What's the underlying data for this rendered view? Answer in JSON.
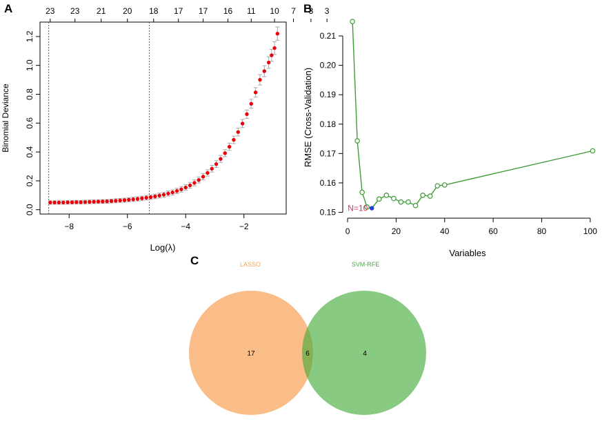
{
  "chart_data": [
    {
      "panel": "A",
      "type": "scatter",
      "title": "",
      "xlabel": "Log(λ)",
      "ylabel": "Binomial Deviance",
      "xlim": [
        -9.0,
        -0.55
      ],
      "ylim": [
        -0.03,
        1.3
      ],
      "xticks": [
        -8,
        -6,
        -4,
        -2
      ],
      "yticks": [
        0.0,
        0.2,
        0.4,
        0.6,
        0.8,
        1.0,
        1.2
      ],
      "top_axis_labels": [
        "23",
        "23",
        "21",
        "20",
        "18",
        "17",
        "17",
        "16",
        "11",
        "10",
        "7",
        "3",
        "3"
      ],
      "top_axis_positions": [
        -8.65,
        -7.8,
        -6.9,
        -6.0,
        -5.1,
        -4.25,
        -3.4,
        -2.55,
        -1.75,
        -0.95,
        -0.3,
        0.3,
        0.85
      ],
      "vlines": [
        -8.7,
        -5.25
      ],
      "series": [
        {
          "name": "CV deviance",
          "x": [
            -8.65,
            -8.5,
            -8.35,
            -8.2,
            -8.05,
            -7.9,
            -7.75,
            -7.6,
            -7.45,
            -7.3,
            -7.15,
            -7.0,
            -6.85,
            -6.7,
            -6.55,
            -6.4,
            -6.25,
            -6.1,
            -5.95,
            -5.8,
            -5.65,
            -5.5,
            -5.35,
            -5.2,
            -5.05,
            -4.9,
            -4.75,
            -4.6,
            -4.45,
            -4.3,
            -4.15,
            -4.0,
            -3.85,
            -3.7,
            -3.55,
            -3.4,
            -3.25,
            -3.1,
            -2.95,
            -2.8,
            -2.65,
            -2.5,
            -2.35,
            -2.2,
            -2.05,
            -1.9,
            -1.75,
            -1.6,
            -1.45,
            -1.3,
            -1.15,
            -1.05,
            -0.95,
            -0.85
          ],
          "y": [
            0.05,
            0.05,
            0.05,
            0.05,
            0.051,
            0.051,
            0.052,
            0.052,
            0.053,
            0.054,
            0.055,
            0.056,
            0.057,
            0.058,
            0.06,
            0.062,
            0.064,
            0.066,
            0.069,
            0.072,
            0.075,
            0.079,
            0.083,
            0.087,
            0.092,
            0.098,
            0.104,
            0.112,
            0.12,
            0.13,
            0.141,
            0.154,
            0.169,
            0.186,
            0.206,
            0.229,
            0.255,
            0.284,
            0.316,
            0.352,
            0.392,
            0.436,
            0.484,
            0.538,
            0.597,
            0.662,
            0.734,
            0.813,
            0.9,
            0.96,
            1.02,
            1.07,
            1.12,
            1.22
          ],
          "err": [
            0.012,
            0.012,
            0.012,
            0.012,
            0.012,
            0.012,
            0.012,
            0.012,
            0.013,
            0.013,
            0.013,
            0.013,
            0.013,
            0.013,
            0.013,
            0.014,
            0.014,
            0.014,
            0.014,
            0.015,
            0.015,
            0.015,
            0.016,
            0.016,
            0.016,
            0.017,
            0.017,
            0.018,
            0.018,
            0.019,
            0.019,
            0.02,
            0.02,
            0.021,
            0.021,
            0.022,
            0.022,
            0.023,
            0.023,
            0.024,
            0.024,
            0.025,
            0.026,
            0.027,
            0.028,
            0.029,
            0.031,
            0.033,
            0.036,
            0.038,
            0.04,
            0.042,
            0.044,
            0.046
          ]
        }
      ]
    },
    {
      "panel": "B",
      "type": "line",
      "title": "",
      "xlabel": "Variables",
      "ylabel": "RMSE (Cross-Validation)",
      "xlim": [
        -2,
        106
      ],
      "ylim": [
        0.148,
        0.218
      ],
      "xticks": [
        0,
        20,
        40,
        60,
        80,
        100
      ],
      "yticks": [
        0.15,
        0.16,
        0.17,
        0.18,
        0.19,
        0.2,
        0.21
      ],
      "series": [
        {
          "name": "RMSE",
          "x": [
            2,
            4,
            6,
            8,
            10,
            13,
            16,
            19,
            22,
            25,
            28,
            31,
            34,
            37,
            40,
            101
          ],
          "y": [
            0.2149,
            0.1743,
            0.1568,
            0.1518,
            0.1514,
            0.1545,
            0.1558,
            0.1547,
            0.1535,
            0.1535,
            0.1523,
            0.1558,
            0.1555,
            0.159,
            0.1593,
            0.1709
          ]
        }
      ],
      "highlight": {
        "x": 10,
        "y": 0.1514,
        "label": "N=10"
      }
    },
    {
      "panel": "C",
      "type": "venn",
      "sets": [
        {
          "name": "LASSO",
          "only": 17,
          "color": "#f9a154"
        },
        {
          "name": "SVM-RFE",
          "only": 4,
          "color": "#3fa935"
        }
      ],
      "intersection": 6
    }
  ],
  "colors": {
    "lasso_point": "#e8000b",
    "errorbar": "#a8a8a8",
    "rmse_line": "#3d9b35",
    "highlight_point": "#1f3ccf",
    "label_pink": "#e0305a",
    "lasso_label": "#f6a45a",
    "svm_label": "#4ca944"
  },
  "panel_labels": {
    "a": "A",
    "b": "B",
    "c": "C"
  }
}
